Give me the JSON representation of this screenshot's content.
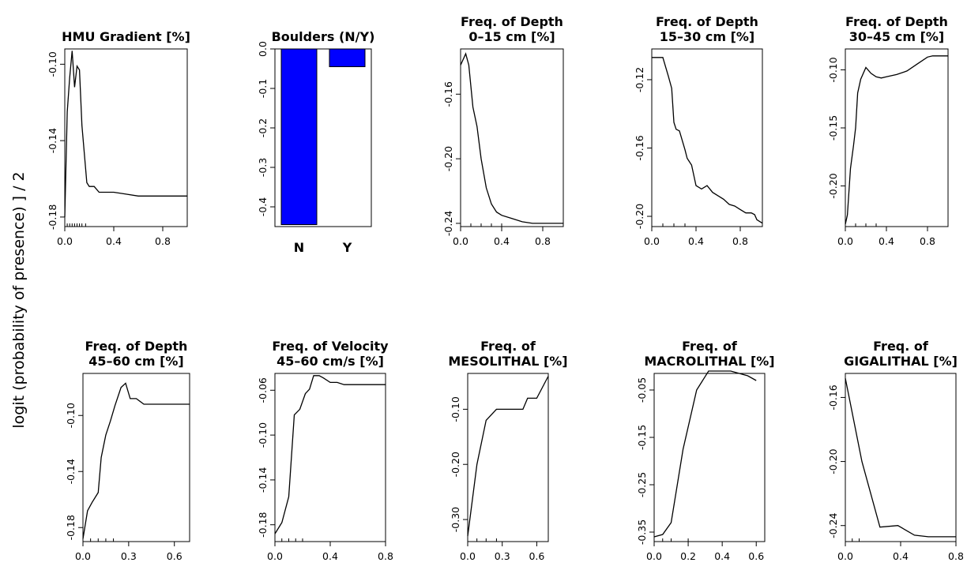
{
  "figure": {
    "ylabel": "logit (probability of presence) ] / 2"
  },
  "chart_data": [
    {
      "type": "line",
      "title": "HMU Gradient [%]",
      "xticks": [
        "0.0",
        "0.4",
        "0.8"
      ],
      "yticks": [
        "-0.10",
        "-0.14",
        "-0.18"
      ],
      "xlim": [
        0,
        1.0
      ],
      "ylim": [
        -0.185,
        -0.092
      ],
      "x": [
        0.0,
        0.02,
        0.04,
        0.06,
        0.08,
        0.1,
        0.12,
        0.14,
        0.18,
        0.2,
        0.24,
        0.28,
        0.3,
        0.4,
        0.5,
        0.6,
        0.8,
        1.0
      ],
      "y": [
        -0.18,
        -0.125,
        -0.107,
        -0.093,
        -0.112,
        -0.101,
        -0.103,
        -0.132,
        -0.162,
        -0.164,
        -0.164,
        -0.167,
        -0.167,
        -0.167,
        -0.168,
        -0.169,
        -0.169,
        -0.169
      ],
      "rug": [
        0.0,
        0.02,
        0.04,
        0.06,
        0.08,
        0.1,
        0.12,
        0.14,
        0.17
      ]
    },
    {
      "type": "bar",
      "title": "Boulders (N/Y)",
      "categories": [
        "N",
        "Y"
      ],
      "values": [
        -0.445,
        -0.045
      ],
      "yticks": [
        "0.0",
        "-0.1",
        "-0.2",
        "-0.3",
        "-0.4"
      ],
      "ylim": [
        -0.45,
        0.0
      ],
      "color": "#0000ff"
    },
    {
      "type": "line",
      "title": "Freq. of Depth\n0–15 cm [%]",
      "xticks": [
        "0.0",
        "0.4",
        "0.8"
      ],
      "yticks": [
        "-0.16",
        "-0.20",
        "-0.24"
      ],
      "xlim": [
        0,
        1.0
      ],
      "ylim": [
        -0.242,
        -0.132
      ],
      "x": [
        0.0,
        0.05,
        0.08,
        0.12,
        0.16,
        0.2,
        0.25,
        0.3,
        0.35,
        0.4,
        0.5,
        0.6,
        0.7,
        0.8,
        0.9,
        1.0
      ],
      "y": [
        -0.142,
        -0.135,
        -0.142,
        -0.168,
        -0.18,
        -0.2,
        -0.218,
        -0.228,
        -0.233,
        -0.235,
        -0.237,
        -0.239,
        -0.24,
        -0.24,
        -0.24,
        -0.24
      ],
      "rug": [
        0.1,
        0.2,
        0.3,
        0.4
      ]
    },
    {
      "type": "line",
      "title": "Freq. of Depth\n15–30 cm [%]",
      "xticks": [
        "0.0",
        "0.4",
        "0.8"
      ],
      "yticks": [
        "-0.12",
        "-0.16",
        "-0.20"
      ],
      "xlim": [
        0,
        1.0
      ],
      "ylim": [
        -0.206,
        -0.102
      ],
      "x": [
        0.0,
        0.1,
        0.15,
        0.18,
        0.2,
        0.22,
        0.25,
        0.3,
        0.32,
        0.36,
        0.4,
        0.45,
        0.5,
        0.55,
        0.6,
        0.65,
        0.7,
        0.75,
        0.8,
        0.85,
        0.9,
        0.93,
        0.95,
        1.0
      ],
      "y": [
        -0.107,
        -0.107,
        -0.118,
        -0.125,
        -0.145,
        -0.149,
        -0.15,
        -0.161,
        -0.166,
        -0.17,
        -0.182,
        -0.184,
        -0.182,
        -0.186,
        -0.188,
        -0.19,
        -0.193,
        -0.194,
        -0.196,
        -0.198,
        -0.198,
        -0.199,
        -0.202,
        -0.204
      ],
      "rug": [
        0.1,
        0.2,
        0.3
      ]
    },
    {
      "type": "line",
      "title": "Freq. of Depth\n30–45 cm [%]",
      "xticks": [
        "0.0",
        "0.4",
        "0.8"
      ],
      "yticks": [
        "-0.10",
        "-0.15",
        "-0.20"
      ],
      "xlim": [
        0,
        1.0
      ],
      "ylim": [
        -0.235,
        -0.082
      ],
      "x": [
        0.0,
        0.02,
        0.05,
        0.08,
        0.1,
        0.12,
        0.15,
        0.2,
        0.25,
        0.3,
        0.35,
        0.4,
        0.5,
        0.6,
        0.7,
        0.8,
        0.85,
        0.9,
        1.0
      ],
      "y": [
        -0.233,
        -0.225,
        -0.185,
        -0.165,
        -0.15,
        -0.12,
        -0.108,
        -0.098,
        -0.103,
        -0.106,
        -0.107,
        -0.106,
        -0.104,
        -0.101,
        -0.095,
        -0.089,
        -0.088,
        -0.088,
        -0.088
      ],
      "rug": [
        0.1,
        0.2,
        0.3
      ]
    },
    {
      "type": "line",
      "title": "Freq. of Depth\n45–60 cm [%]",
      "xticks": [
        "0.0",
        "0.3",
        "0.6"
      ],
      "yticks": [
        "-0.10",
        "-0.14",
        "-0.18"
      ],
      "xlim": [
        0,
        0.7
      ],
      "ylim": [
        -0.19,
        -0.07
      ],
      "x": [
        0.0,
        0.03,
        0.06,
        0.1,
        0.12,
        0.15,
        0.18,
        0.21,
        0.25,
        0.28,
        0.31,
        0.35,
        0.4,
        0.5,
        0.6,
        0.7
      ],
      "y": [
        -0.188,
        -0.168,
        -0.162,
        -0.155,
        -0.13,
        -0.114,
        -0.104,
        -0.093,
        -0.08,
        -0.077,
        -0.088,
        -0.088,
        -0.092,
        -0.092,
        -0.092,
        -0.092
      ],
      "rug": [
        0.0,
        0.05,
        0.1,
        0.15,
        0.2
      ]
    },
    {
      "type": "line",
      "title": "Freq. of Velocity\n45–60 cm/s [%]",
      "xticks": [
        "0.0",
        "0.4",
        "0.8"
      ],
      "yticks": [
        "-0.06",
        "-0.10",
        "-0.14",
        "-0.18"
      ],
      "xlim": [
        0,
        0.8
      ],
      "ylim": [
        -0.195,
        -0.045
      ],
      "x": [
        0.0,
        0.05,
        0.1,
        0.14,
        0.18,
        0.22,
        0.25,
        0.28,
        0.32,
        0.35,
        0.4,
        0.45,
        0.5,
        0.6,
        0.7,
        0.8
      ],
      "y": [
        -0.188,
        -0.178,
        -0.155,
        -0.082,
        -0.077,
        -0.063,
        -0.059,
        -0.047,
        -0.047,
        -0.049,
        -0.053,
        -0.053,
        -0.055,
        -0.055,
        -0.055,
        -0.055
      ],
      "rug": [
        0.05,
        0.1,
        0.15,
        0.2
      ]
    },
    {
      "type": "line",
      "title": "Freq. of\nMESOLITHAL [%]",
      "xticks": [
        "0.0",
        "0.3",
        "0.6"
      ],
      "yticks": [
        "-0.10",
        "-0.20",
        "-0.30"
      ],
      "xlim": [
        0,
        0.7
      ],
      "ylim": [
        -0.34,
        -0.035
      ],
      "x": [
        0.0,
        0.08,
        0.16,
        0.25,
        0.48,
        0.52,
        0.6,
        0.7
      ],
      "y": [
        -0.33,
        -0.2,
        -0.12,
        -0.1,
        -0.1,
        -0.08,
        -0.08,
        -0.04
      ],
      "rug": [
        0.08,
        0.16,
        0.25
      ]
    },
    {
      "type": "line",
      "title": "Freq. of\nMACROLITHAL [%]",
      "xticks": [
        "0.0",
        "0.2",
        "0.4",
        "0.6"
      ],
      "yticks": [
        "-0.05",
        "-0.15",
        "-0.25",
        "-0.35"
      ],
      "xlim": [
        0,
        0.65
      ],
      "ylim": [
        -0.37,
        -0.015
      ],
      "x": [
        0.0,
        0.05,
        0.1,
        0.17,
        0.25,
        0.32,
        0.38,
        0.45,
        0.5,
        0.55,
        0.6
      ],
      "y": [
        -0.36,
        -0.355,
        -0.33,
        -0.175,
        -0.05,
        -0.01,
        -0.01,
        -0.01,
        -0.015,
        -0.02,
        -0.03
      ],
      "rug": [
        0.05,
        0.1,
        0.2
      ]
    },
    {
      "type": "line",
      "title": "Freq. of\nGIGALITHAL [%]",
      "xticks": [
        "0.0",
        "0.4",
        "0.8"
      ],
      "yticks": [
        "-0.16",
        "-0.20",
        "-0.24"
      ],
      "xlim": [
        0,
        0.8
      ],
      "ylim": [
        -0.25,
        -0.145
      ],
      "x": [
        0.0,
        0.12,
        0.25,
        0.38,
        0.5,
        0.6,
        0.7,
        0.8
      ],
      "y": [
        -0.148,
        -0.2,
        -0.241,
        -0.24,
        -0.246,
        -0.247,
        -0.247,
        -0.247
      ],
      "rug": [
        0.0,
        0.05,
        0.1
      ]
    }
  ]
}
